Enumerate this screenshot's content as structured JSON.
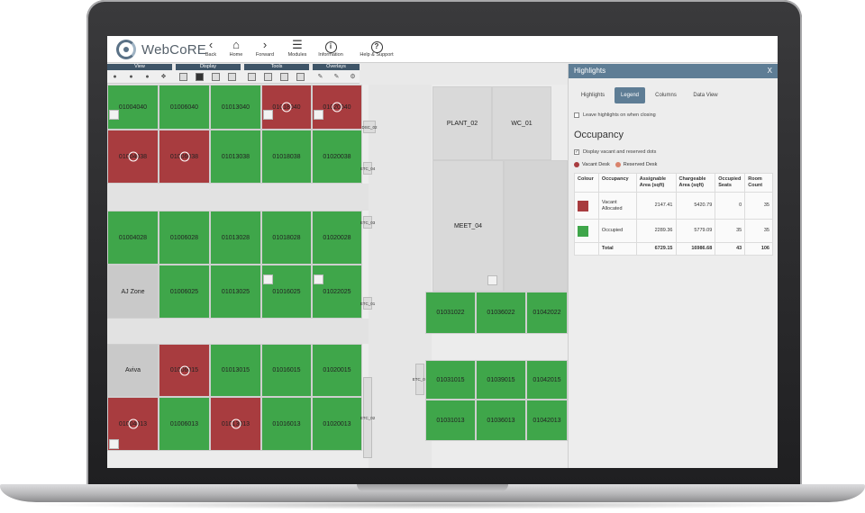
{
  "app": {
    "name": "WebCoRE"
  },
  "nav": {
    "back": "Back",
    "home": "Home",
    "forward": "Forward",
    "modules": "Modules",
    "information": "Information",
    "help": "Help & Support"
  },
  "toolbar": {
    "categories": [
      "View",
      "Display",
      "Tools",
      "Overlays"
    ]
  },
  "floorplan": {
    "rooms": {
      "r01004040": "01004040",
      "r01006040": "01006040",
      "r01013040": "01013040",
      "r01018040": "01018040",
      "r01020040": "01020040",
      "r01004038": "01004038",
      "r01006038": "01006038",
      "r01013038": "01013038",
      "r01018038": "01018038",
      "r01020038": "01020038",
      "r01004028": "01004028",
      "r01006028": "01006028",
      "r01013028": "01013028",
      "r01018028": "01018028",
      "r01020028": "01020028",
      "aj_zone": "AJ Zone",
      "r01006025": "01006025",
      "r01013025": "01013025",
      "r01016025": "01016025",
      "r01022025": "01022025",
      "aviva": "Aviva",
      "r01006015": "01006015",
      "r01013015": "01013015",
      "r01016015": "01016015",
      "r01020015": "01020015",
      "r01004013": "01004013",
      "r01006013": "01006013",
      "r01013013": "01013013",
      "r01016013": "01016013",
      "r01020013": "01020013",
      "plant_02": "PLANT_02",
      "wc_01": "WC_01",
      "meet_04": "MEET_04",
      "r01031022": "01031022",
      "r01036022": "01036022",
      "r01042022": "01042022",
      "r01031015": "01031015",
      "r01039015": "01039015",
      "r01042015": "01042015",
      "r01031013": "01031013",
      "r01036013": "01036013",
      "r01042013": "01042013"
    },
    "side_labels": {
      "s1": "DSC_02",
      "s2": "ETC_04",
      "s3": "ETC_03",
      "s4": "ETC_01",
      "s5": "ETC_02",
      "s6": "ETC_05"
    }
  },
  "panel": {
    "title": "Highlights",
    "close": "X",
    "tabs": [
      "Highlights",
      "Legend",
      "Columns",
      "Data View"
    ],
    "active_tab": "Legend",
    "leave_on": "Leave highlights on when closing",
    "section_title": "Occupancy",
    "display_dots": "Display vacant and reserved dots",
    "legend": {
      "vacant_desk": "Vacant Desk",
      "reserved_desk": "Reserved Desk"
    },
    "colors": {
      "vacant": "#a83c3f",
      "occupied": "#3fa64a",
      "reserved": "#d9826b",
      "accent": "#5e7d95"
    },
    "table": {
      "headers": [
        "Colour",
        "Occupancy",
        "Assignable Area (sqft)",
        "Chargeable Area (sqft)",
        "Occupied Seats",
        "Room Count"
      ],
      "rows": [
        {
          "occupancy": "Vacant Allocated",
          "assignable": "2147.41",
          "chargeable": "5420.79",
          "seats": "0",
          "rooms": "35"
        },
        {
          "occupancy": "Occupied",
          "assignable": "2289.36",
          "chargeable": "5779.09",
          "seats": "35",
          "rooms": "35"
        }
      ],
      "total": {
        "label": "Total",
        "assignable": "6729.15",
        "chargeable": "16986.68",
        "seats": "43",
        "rooms": "106"
      }
    }
  }
}
